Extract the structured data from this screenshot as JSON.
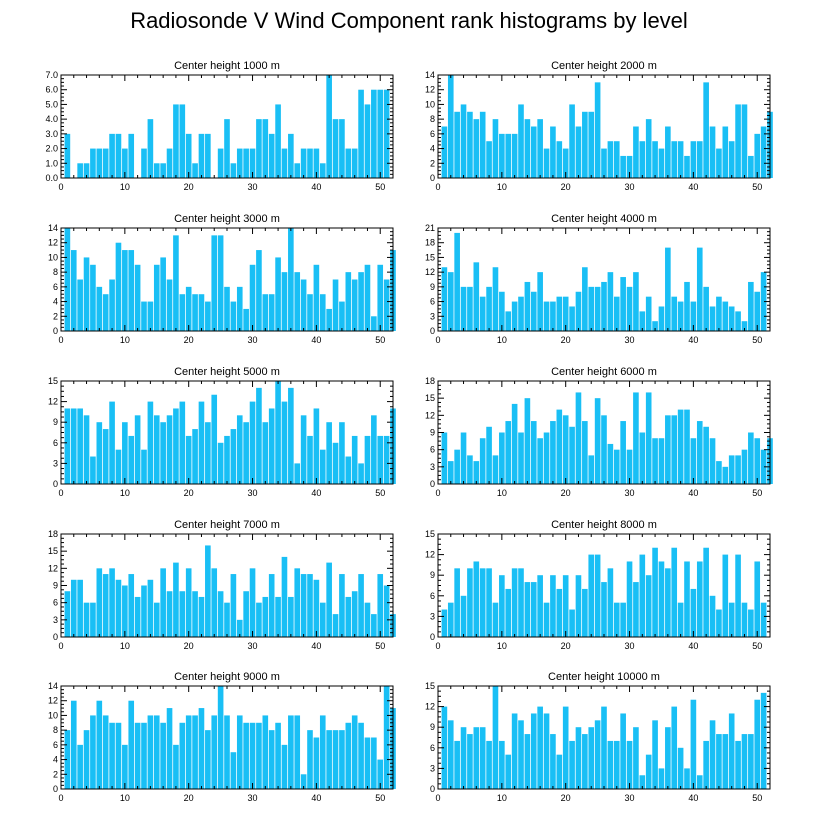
{
  "title": "Radiosonde V Wind Component rank histograms by level",
  "colors": {
    "bar": "#19bff5",
    "axis": "#000000",
    "background": "#ffffff"
  },
  "chart_data": [
    {
      "type": "bar",
      "title": "Center height 1000 m",
      "xlim": [
        0,
        52
      ],
      "xticks": [
        0,
        10,
        20,
        30,
        40,
        50
      ],
      "ylim": [
        0,
        7
      ],
      "yticks": [
        "0.0",
        "1.0",
        "2.0",
        "3.0",
        "4.0",
        "5.0",
        "6.0",
        "7.0"
      ],
      "values": [
        3,
        0,
        1,
        1,
        2,
        2,
        2,
        3,
        3,
        2,
        3,
        0,
        2,
        4,
        1,
        1,
        2,
        5,
        5,
        3,
        1,
        3,
        3,
        0,
        2,
        4,
        1,
        2,
        2,
        2,
        4,
        4,
        3,
        5,
        2,
        3,
        1,
        2,
        2,
        2,
        1,
        7,
        4,
        4,
        2,
        2,
        6,
        5,
        6,
        6,
        6
      ]
    },
    {
      "type": "bar",
      "title": "Center height 2000 m",
      "xlim": [
        0,
        52
      ],
      "xticks": [
        0,
        10,
        20,
        30,
        40,
        50
      ],
      "ylim": [
        0,
        14
      ],
      "yticks": [
        "0",
        "2",
        "4",
        "6",
        "8",
        "10",
        "12",
        "14"
      ],
      "values": [
        7,
        14,
        9,
        10,
        9,
        8,
        9,
        5,
        8,
        6,
        6,
        6,
        10,
        8,
        7,
        8,
        4,
        7,
        5,
        4,
        10,
        7,
        9,
        9,
        13,
        4,
        5,
        5,
        3,
        3,
        7,
        5,
        8,
        5,
        4,
        7,
        5,
        5,
        3,
        5,
        5,
        13,
        7,
        4,
        7,
        5,
        10,
        10,
        3,
        6,
        7,
        9
      ]
    },
    {
      "type": "bar",
      "title": "Center height 3000 m",
      "xlim": [
        0,
        52
      ],
      "xticks": [
        0,
        10,
        20,
        30,
        40,
        50
      ],
      "ylim": [
        0,
        14
      ],
      "yticks": [
        "0",
        "2",
        "4",
        "6",
        "8",
        "10",
        "12",
        "14"
      ],
      "values": [
        14,
        11,
        7,
        10,
        9,
        6,
        5,
        7,
        12,
        11,
        11,
        9,
        4,
        4,
        9,
        10,
        7,
        13,
        5,
        6,
        5,
        5,
        4,
        13,
        13,
        6,
        4,
        6,
        3,
        9,
        11,
        5,
        5,
        10,
        8,
        14,
        8,
        7,
        5,
        9,
        5,
        3,
        7,
        4,
        8,
        7,
        8,
        9,
        2,
        9,
        7,
        11
      ]
    },
    {
      "type": "bar",
      "title": "Center height 4000 m",
      "xlim": [
        0,
        52
      ],
      "xticks": [
        0,
        10,
        20,
        30,
        40,
        50
      ],
      "ylim": [
        0,
        21
      ],
      "yticks": [
        "0",
        "3",
        "6",
        "9",
        "12",
        "15",
        "18",
        "21"
      ],
      "values": [
        13,
        12,
        20,
        9,
        9,
        14,
        7,
        9,
        13,
        8,
        4,
        6,
        7,
        10,
        8,
        12,
        6,
        6,
        7,
        7,
        5,
        8,
        13,
        9,
        9,
        10,
        12,
        7,
        11,
        9,
        12,
        4,
        7,
        2,
        5,
        17,
        7,
        6,
        10,
        6,
        17,
        9,
        5,
        7,
        6,
        5,
        4,
        2,
        10,
        8,
        12
      ]
    },
    {
      "type": "bar",
      "title": "Center height 5000 m",
      "xlim": [
        0,
        52
      ],
      "xticks": [
        0,
        10,
        20,
        30,
        40,
        50
      ],
      "ylim": [
        0,
        15
      ],
      "yticks": [
        "0",
        "3",
        "6",
        "9",
        "12",
        "15"
      ],
      "values": [
        11,
        11,
        11,
        10,
        4,
        9,
        8,
        12,
        5,
        9,
        7,
        10,
        5,
        12,
        10,
        9,
        10,
        11,
        12,
        7,
        8,
        12,
        9,
        13,
        6,
        7,
        8,
        10,
        9,
        12,
        14,
        9,
        11,
        15,
        12,
        14,
        3,
        10,
        7,
        11,
        5,
        9,
        6,
        9,
        4,
        7,
        3,
        7,
        10,
        7,
        7,
        11
      ]
    },
    {
      "type": "bar",
      "title": "Center height 6000 m",
      "xlim": [
        0,
        52
      ],
      "xticks": [
        0,
        10,
        20,
        30,
        40,
        50
      ],
      "ylim": [
        0,
        18
      ],
      "yticks": [
        "0",
        "3",
        "6",
        "9",
        "12",
        "15",
        "18"
      ],
      "values": [
        9,
        4,
        6,
        9,
        5,
        4,
        8,
        10,
        5,
        9,
        11,
        14,
        9,
        15,
        11,
        8,
        9,
        11,
        13,
        12,
        10,
        16,
        11,
        5,
        15,
        12,
        7,
        6,
        11,
        6,
        16,
        9,
        16,
        8,
        8,
        12,
        12,
        13,
        13,
        8,
        11,
        10,
        8,
        4,
        3,
        5,
        5,
        6,
        9,
        8,
        6,
        8
      ]
    },
    {
      "type": "bar",
      "title": "Center height 7000 m",
      "xlim": [
        0,
        52
      ],
      "xticks": [
        0,
        10,
        20,
        30,
        40,
        50
      ],
      "ylim": [
        0,
        18
      ],
      "yticks": [
        "0",
        "3",
        "6",
        "9",
        "12",
        "15",
        "18"
      ],
      "values": [
        8,
        10,
        10,
        6,
        6,
        12,
        11,
        12,
        10,
        9,
        11,
        7,
        9,
        10,
        6,
        12,
        8,
        13,
        8,
        12,
        8,
        7,
        16,
        12,
        8,
        6,
        11,
        3,
        8,
        12,
        6,
        7,
        11,
        7,
        14,
        7,
        12,
        11,
        11,
        10,
        6,
        13,
        4,
        11,
        7,
        8,
        11,
        6,
        4,
        11,
        9,
        4
      ]
    },
    {
      "type": "bar",
      "title": "Center height 8000 m",
      "xlim": [
        0,
        52
      ],
      "xticks": [
        0,
        10,
        20,
        30,
        40,
        50
      ],
      "ylim": [
        0,
        15
      ],
      "yticks": [
        "0",
        "3",
        "6",
        "9",
        "12",
        "15"
      ],
      "values": [
        4,
        5,
        10,
        6,
        10,
        11,
        10,
        10,
        5,
        9,
        7,
        10,
        10,
        8,
        8,
        9,
        5,
        9,
        7,
        9,
        4,
        9,
        7,
        12,
        12,
        8,
        10,
        5,
        5,
        11,
        8,
        12,
        9,
        13,
        11,
        10,
        13,
        5,
        11,
        7,
        11,
        13,
        6,
        4,
        12,
        5,
        12,
        5,
        4,
        11,
        5
      ]
    },
    {
      "type": "bar",
      "title": "Center height 9000 m",
      "xlim": [
        0,
        52
      ],
      "xticks": [
        0,
        10,
        20,
        30,
        40,
        50
      ],
      "ylim": [
        0,
        14
      ],
      "yticks": [
        "0",
        "2",
        "4",
        "6",
        "8",
        "10",
        "12",
        "14"
      ],
      "values": [
        8,
        12,
        6,
        8,
        10,
        12,
        10,
        9,
        9,
        6,
        12,
        9,
        9,
        10,
        10,
        9,
        11,
        6,
        9,
        10,
        10,
        11,
        8,
        10,
        14,
        10,
        5,
        10,
        9,
        9,
        9,
        10,
        8,
        9,
        6,
        10,
        10,
        2,
        8,
        7,
        10,
        8,
        8,
        8,
        9,
        10,
        9,
        7,
        7,
        4,
        14,
        11
      ]
    },
    {
      "type": "bar",
      "title": "Center height 10000 m",
      "xlim": [
        0,
        52
      ],
      "xticks": [
        0,
        10,
        20,
        30,
        40,
        50
      ],
      "ylim": [
        0,
        15
      ],
      "yticks": [
        "0",
        "3",
        "6",
        "9",
        "12",
        "15"
      ],
      "values": [
        12,
        10,
        7,
        9,
        8,
        9,
        9,
        7,
        15,
        7,
        5,
        11,
        10,
        8,
        11,
        12,
        11,
        8,
        5,
        12,
        7,
        9,
        8,
        9,
        10,
        12,
        7,
        7,
        11,
        7,
        9,
        2,
        5,
        10,
        3,
        9,
        12,
        6,
        3,
        13,
        2,
        7,
        10,
        8,
        8,
        11,
        7,
        8,
        8,
        13,
        14
      ]
    }
  ]
}
